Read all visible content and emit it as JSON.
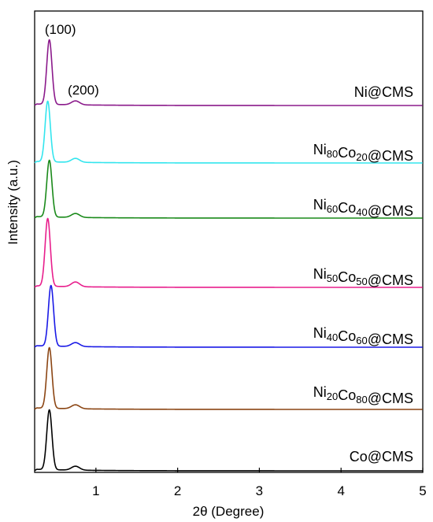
{
  "chart_data": {
    "type": "line",
    "title": "",
    "xlabel": "2θ (Degree)",
    "ylabel": "Intensity (a.u.)",
    "xlim": [
      0.25,
      5
    ],
    "xticks": [
      "1",
      "2",
      "3",
      "4",
      "5"
    ],
    "yticks_shown": false,
    "grid": false,
    "legend": "inline labels at right of each curve",
    "annotations": [
      {
        "text": "(100)",
        "x": 0.43
      },
      {
        "text": "(200)",
        "x": 0.75
      }
    ],
    "series": [
      {
        "name": "Ni@CMS",
        "label_parts": [
          {
            "t": "Ni@CMS"
          }
        ],
        "color": "#8B1A8B",
        "peak_x": 0.43,
        "peak_height": 82,
        "peak2_height": 5
      },
      {
        "name": "Ni80Co20@CMS",
        "label_parts": [
          {
            "t": "Ni"
          },
          {
            "t": "80",
            "sub": true
          },
          {
            "t": "Co"
          },
          {
            "t": "20",
            "sub": true
          },
          {
            "t": "@CMS"
          }
        ],
        "color": "#33E5EE",
        "peak_x": 0.41,
        "peak_height": 77,
        "peak2_height": 5
      },
      {
        "name": "Ni60Co40@CMS",
        "label_parts": [
          {
            "t": "Ni"
          },
          {
            "t": "60",
            "sub": true
          },
          {
            "t": "Co"
          },
          {
            "t": "40",
            "sub": true
          },
          {
            "t": "@CMS"
          }
        ],
        "color": "#1A8A1A",
        "peak_x": 0.43,
        "peak_height": 72,
        "peak2_height": 5
      },
      {
        "name": "Ni50Co50@CMS",
        "label_parts": [
          {
            "t": "Ni"
          },
          {
            "t": "50",
            "sub": true
          },
          {
            "t": "Co"
          },
          {
            "t": "50",
            "sub": true
          },
          {
            "t": "@CMS"
          }
        ],
        "color": "#E81E8C",
        "peak_x": 0.41,
        "peak_height": 86,
        "peak2_height": 6
      },
      {
        "name": "Ni40Co60@CMS",
        "label_parts": [
          {
            "t": "Ni"
          },
          {
            "t": "40",
            "sub": true
          },
          {
            "t": "Co"
          },
          {
            "t": "60",
            "sub": true
          },
          {
            "t": "@CMS"
          }
        ],
        "color": "#1A1AE6",
        "peak_x": 0.45,
        "peak_height": 77,
        "peak2_height": 5
      },
      {
        "name": "Ni20Co80@CMS",
        "label_parts": [
          {
            "t": "Ni"
          },
          {
            "t": "20",
            "sub": true
          },
          {
            "t": "Co"
          },
          {
            "t": "80",
            "sub": true
          },
          {
            "t": "@CMS"
          }
        ],
        "color": "#8B4513",
        "peak_x": 0.43,
        "peak_height": 77,
        "peak2_height": 5
      },
      {
        "name": "Co@CMS",
        "label_parts": [
          {
            "t": "Co@CMS"
          }
        ],
        "color": "#000000",
        "peak_x": 0.43,
        "peak_height": 76,
        "peak2_height": 5
      }
    ]
  }
}
